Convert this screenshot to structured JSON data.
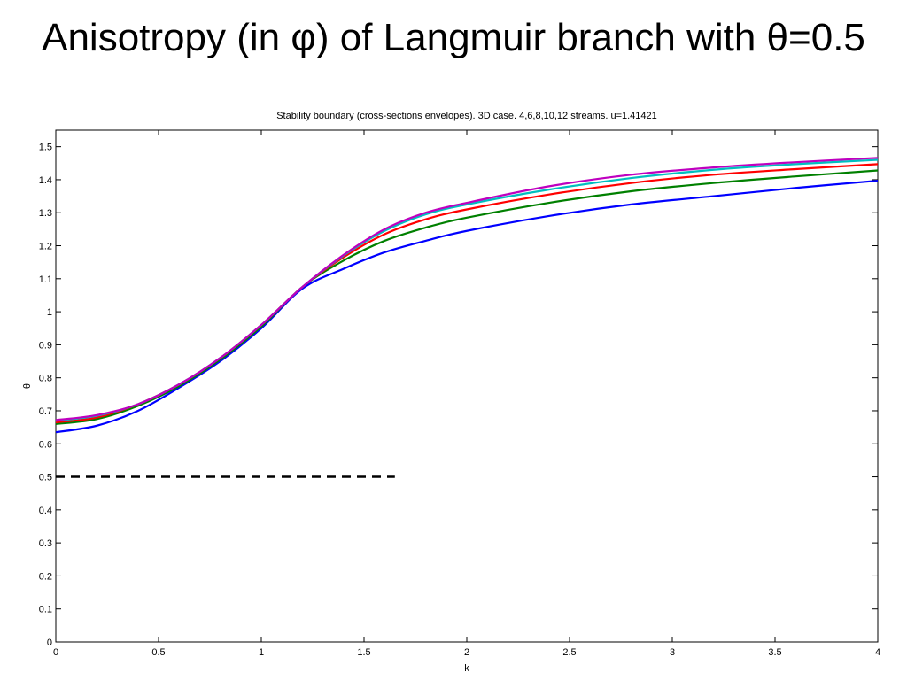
{
  "slide": {
    "title": "Anisotropy (in φ) of Langmuir branch with θ=0.5"
  },
  "chart_data": {
    "type": "line",
    "title": "Stability boundary (cross-sections envelopes). 3D case. 4,6,8,10,12 streams. u=1.41421",
    "xlabel": "k",
    "ylabel": "θ",
    "xlim": [
      0,
      4
    ],
    "ylim": [
      0,
      1.55
    ],
    "xticks": [
      0,
      0.5,
      1,
      1.5,
      2,
      2.5,
      3,
      3.5,
      4
    ],
    "xtick_labels": [
      "0",
      "0.5",
      "1",
      "1.5",
      "2",
      "2.5",
      "3",
      "3.5",
      "4"
    ],
    "yticks": [
      0,
      0.1,
      0.2,
      0.3,
      0.4,
      0.5,
      0.6,
      0.7,
      0.8,
      0.9,
      1,
      1.1,
      1.2,
      1.3,
      1.4,
      1.5
    ],
    "ytick_labels": [
      "0",
      "0.1",
      "0.2",
      "0.3",
      "0.4",
      "0.5",
      "0.6",
      "0.7",
      "0.8",
      "0.9",
      "1",
      "1.1",
      "1.2",
      "1.3",
      "1.4",
      "1.5"
    ],
    "grid": false,
    "legend": "none",
    "series": [
      {
        "color": "#0000ff",
        "x": [
          0,
          0.2,
          0.4,
          0.6,
          0.8,
          1.0,
          1.2,
          1.4,
          1.6,
          1.8,
          2.0,
          2.4,
          2.8,
          3.2,
          3.6,
          4.0
        ],
        "y": [
          0.635,
          0.655,
          0.7,
          0.77,
          0.85,
          0.95,
          1.07,
          1.13,
          1.18,
          1.215,
          1.245,
          1.29,
          1.325,
          1.35,
          1.375,
          1.397
        ]
      },
      {
        "color": "#008000",
        "x": [
          0,
          0.2,
          0.4,
          0.6,
          0.8,
          1.0,
          1.2,
          1.4,
          1.6,
          1.8,
          2.0,
          2.4,
          2.8,
          3.2,
          3.6,
          4.0
        ],
        "y": [
          0.66,
          0.675,
          0.715,
          0.775,
          0.855,
          0.955,
          1.075,
          1.155,
          1.215,
          1.255,
          1.285,
          1.33,
          1.365,
          1.39,
          1.41,
          1.428
        ]
      },
      {
        "color": "#ff0000",
        "x": [
          0,
          0.2,
          0.4,
          0.6,
          0.8,
          1.0,
          1.2,
          1.4,
          1.6,
          1.8,
          2.0,
          2.4,
          2.8,
          3.2,
          3.6,
          4.0
        ],
        "y": [
          0.665,
          0.68,
          0.72,
          0.78,
          0.86,
          0.96,
          1.075,
          1.165,
          1.235,
          1.28,
          1.31,
          1.355,
          1.39,
          1.415,
          1.432,
          1.447
        ]
      },
      {
        "color": "#00bfbf",
        "x": [
          0,
          0.2,
          0.4,
          0.6,
          0.8,
          1.0,
          1.2,
          1.4,
          1.6,
          1.8,
          2.0,
          2.4,
          2.8,
          3.2,
          3.6,
          4.0
        ],
        "y": [
          0.67,
          0.685,
          0.72,
          0.78,
          0.86,
          0.96,
          1.075,
          1.17,
          1.245,
          1.295,
          1.325,
          1.37,
          1.405,
          1.43,
          1.447,
          1.46
        ]
      },
      {
        "color": "#bf00bf",
        "x": [
          0,
          0.2,
          0.4,
          0.6,
          0.8,
          1.0,
          1.2,
          1.4,
          1.6,
          1.8,
          2.0,
          2.4,
          2.8,
          3.2,
          3.6,
          4.0
        ],
        "y": [
          0.672,
          0.687,
          0.72,
          0.78,
          0.86,
          0.96,
          1.075,
          1.172,
          1.25,
          1.3,
          1.33,
          1.38,
          1.415,
          1.437,
          1.453,
          1.466
        ]
      }
    ],
    "reference_line": {
      "style": "dashed",
      "color": "#000000",
      "x": [
        0,
        1.65
      ],
      "y": [
        0.5,
        0.5
      ]
    }
  }
}
